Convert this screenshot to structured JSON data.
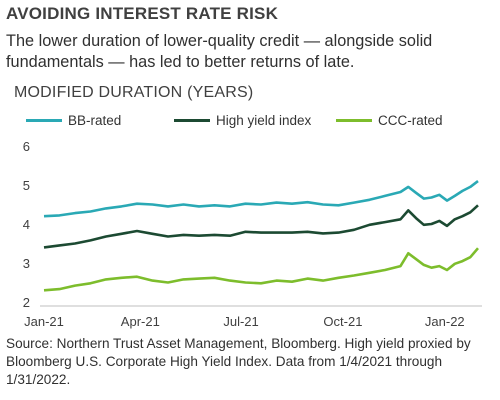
{
  "title": "AVOIDING INTEREST RATE RISK",
  "subtitle": "The lower duration of lower-quality credit — alongside solid fundamentals — has led to better returns of late.",
  "source": "Source: Northern Trust Asset Management, Bloomberg. High yield proxied by Bloomberg U.S. Corporate High Yield Index. Data from 1/4/2021 through 1/31/2022.",
  "chart_data": {
    "type": "line",
    "ylabel": "MODIFIED DURATION (YEARS)",
    "xlabel": "",
    "ylim": [
      2,
      6
    ],
    "yticks": [
      "2",
      "3",
      "4",
      "5",
      "6"
    ],
    "xticks": [
      "Jan-21",
      "Apr-21",
      "Jul-21",
      "Oct-21",
      "Jan-22"
    ],
    "legend_position": "top",
    "grid": false,
    "x_start": "2021-01-04",
    "x_end": "2022-01-31",
    "x": [
      "2021-01-04",
      "2021-01-18",
      "2021-02-01",
      "2021-02-15",
      "2021-03-01",
      "2021-03-15",
      "2021-03-29",
      "2021-04-12",
      "2021-04-26",
      "2021-05-10",
      "2021-05-24",
      "2021-06-07",
      "2021-06-21",
      "2021-07-05",
      "2021-07-19",
      "2021-08-02",
      "2021-08-16",
      "2021-08-30",
      "2021-09-13",
      "2021-09-27",
      "2021-10-11",
      "2021-10-25",
      "2021-11-08",
      "2021-11-22",
      "2021-11-29",
      "2021-12-06",
      "2021-12-13",
      "2021-12-20",
      "2021-12-27",
      "2022-01-03",
      "2022-01-10",
      "2022-01-17",
      "2022-01-24",
      "2022-01-31"
    ],
    "series": [
      {
        "name": "BB-rated",
        "color": "#2aa9b5",
        "values": [
          4.2,
          4.22,
          4.28,
          4.32,
          4.4,
          4.45,
          4.52,
          4.5,
          4.45,
          4.5,
          4.45,
          4.48,
          4.45,
          4.52,
          4.5,
          4.55,
          4.52,
          4.56,
          4.5,
          4.48,
          4.55,
          4.62,
          4.72,
          4.82,
          4.95,
          4.8,
          4.65,
          4.68,
          4.75,
          4.6,
          4.72,
          4.85,
          4.95,
          5.1
        ]
      },
      {
        "name": "High yield index",
        "color": "#1c4a32",
        "values": [
          3.4,
          3.45,
          3.5,
          3.58,
          3.68,
          3.75,
          3.82,
          3.75,
          3.68,
          3.72,
          3.7,
          3.72,
          3.7,
          3.8,
          3.78,
          3.78,
          3.78,
          3.8,
          3.76,
          3.78,
          3.85,
          3.98,
          4.05,
          4.12,
          4.35,
          4.15,
          3.98,
          4.0,
          4.08,
          3.95,
          4.12,
          4.2,
          4.3,
          4.48
        ]
      },
      {
        "name": "CCC-rated",
        "color": "#7dbd2c",
        "values": [
          2.3,
          2.33,
          2.42,
          2.48,
          2.58,
          2.62,
          2.65,
          2.55,
          2.5,
          2.58,
          2.6,
          2.62,
          2.55,
          2.5,
          2.48,
          2.55,
          2.52,
          2.6,
          2.55,
          2.62,
          2.68,
          2.75,
          2.82,
          2.92,
          3.25,
          3.1,
          2.95,
          2.88,
          2.92,
          2.82,
          2.98,
          3.05,
          3.15,
          3.38
        ]
      }
    ]
  }
}
